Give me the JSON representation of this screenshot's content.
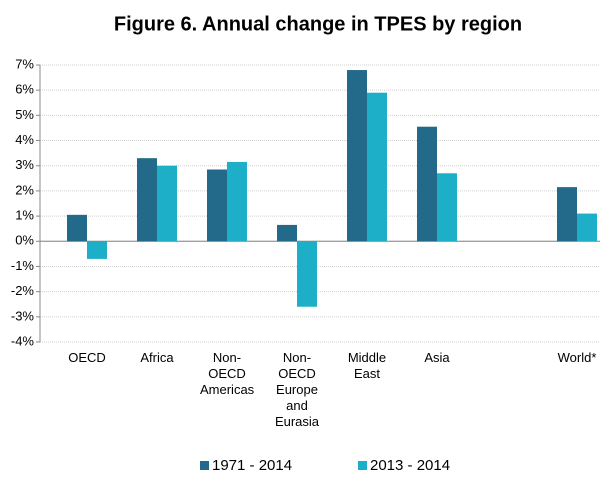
{
  "chart_data": {
    "type": "bar",
    "title": "Figure 6. Annual change in TPES by region",
    "categories": [
      "OECD",
      "Africa",
      "Non-OECD Americas",
      "Non-OECD Europe and Eurasia",
      "Middle East",
      "Asia",
      null,
      "World*"
    ],
    "series": [
      {
        "name": "1971 - 2014",
        "color": "#236a8a",
        "values": [
          1.05,
          3.3,
          2.85,
          0.65,
          6.8,
          4.55,
          null,
          2.15
        ]
      },
      {
        "name": "2013 - 2014",
        "color": "#1eafc8",
        "values": [
          -0.7,
          3.0,
          3.15,
          -2.6,
          5.9,
          2.7,
          null,
          1.1
        ]
      }
    ],
    "ylim": [
      -4,
      7
    ],
    "yticks": [
      {
        "value": -4,
        "label": "-4%"
      },
      {
        "value": -3,
        "label": "-3%"
      },
      {
        "value": -2,
        "label": "-2%"
      },
      {
        "value": -1,
        "label": "-1%"
      },
      {
        "value": 0,
        "label": "0%"
      },
      {
        "value": 1,
        "label": "1%"
      },
      {
        "value": 2,
        "label": "2%"
      },
      {
        "value": 3,
        "label": "3%"
      },
      {
        "value": 4,
        "label": "4%"
      },
      {
        "value": 5,
        "label": "5%"
      },
      {
        "value": 6,
        "label": "6%"
      },
      {
        "value": 7,
        "label": "7%"
      }
    ],
    "grid": true,
    "legend": "bottom"
  }
}
